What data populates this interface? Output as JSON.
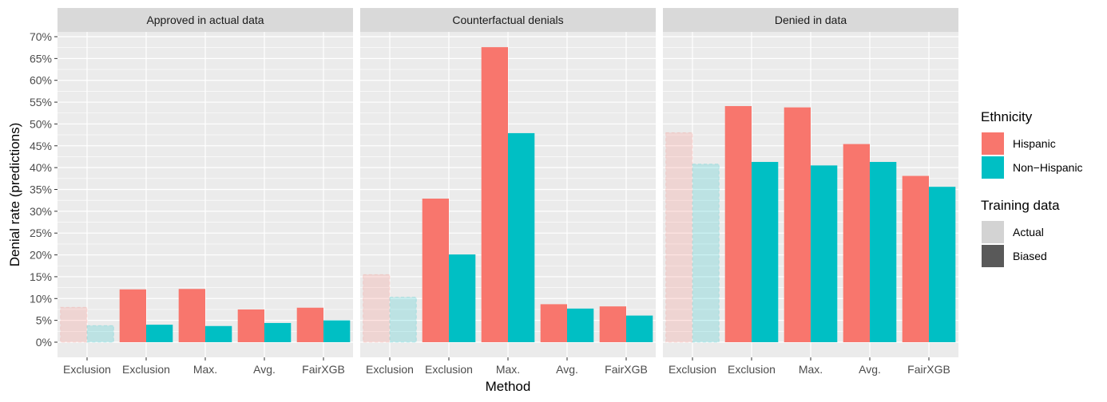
{
  "chart_data": {
    "type": "bar",
    "ylabel": "Denial rate (predictions)",
    "xlabel": "Method",
    "ylim": [
      0,
      0.7
    ],
    "y_ticks": [
      "0%",
      "5%",
      "10%",
      "15%",
      "20%",
      "25%",
      "30%",
      "35%",
      "40%",
      "45%",
      "50%",
      "55%",
      "60%",
      "65%",
      "70%"
    ],
    "y_tick_values": [
      0,
      0.05,
      0.1,
      0.15,
      0.2,
      0.25,
      0.3,
      0.35,
      0.4,
      0.45,
      0.5,
      0.55,
      0.6,
      0.65,
      0.7
    ],
    "categories": [
      "Exclusion",
      "Exclusion",
      "Max.",
      "Avg.",
      "FairXGB"
    ],
    "training_data": [
      "Actual",
      "Biased",
      "Biased",
      "Biased",
      "Biased"
    ],
    "grid": true,
    "legend_position": "right",
    "legends": [
      {
        "title": "Ethnicity",
        "entries": [
          {
            "label": "Hispanic",
            "color": "#F8766D"
          },
          {
            "label": "Non−Hispanic",
            "color": "#00BFC4"
          }
        ]
      },
      {
        "title": "Training data",
        "entries": [
          {
            "label": "Actual",
            "color": "#d3d3d3"
          },
          {
            "label": "Biased",
            "color": "#595959"
          }
        ]
      }
    ],
    "panels": [
      {
        "title": "Approved in actual data",
        "series": [
          {
            "name": "Hispanic",
            "values": [
              0.08,
              0.121,
              0.122,
              0.075,
              0.079
            ]
          },
          {
            "name": "Non−Hispanic",
            "values": [
              0.038,
              0.04,
              0.037,
              0.044,
              0.05
            ]
          }
        ]
      },
      {
        "title": "Counterfactual denials",
        "series": [
          {
            "name": "Hispanic",
            "values": [
              0.155,
              0.329,
              0.676,
              0.087,
              0.082
            ]
          },
          {
            "name": "Non−Hispanic",
            "values": [
              0.103,
              0.201,
              0.479,
              0.077,
              0.061
            ]
          }
        ]
      },
      {
        "title": "Denied in data",
        "series": [
          {
            "name": "Hispanic",
            "values": [
              0.48,
              0.541,
              0.538,
              0.454,
              0.381
            ]
          },
          {
            "name": "Non−Hispanic",
            "values": [
              0.408,
              0.413,
              0.405,
              0.413,
              0.356
            ]
          }
        ]
      }
    ]
  },
  "colors": {
    "hispanic": "#F8766D",
    "non_hispanic": "#00BFC4",
    "panel_bg": "#EBEBEB",
    "strip_bg": "#D9D9D9",
    "grid": "#FFFFFF"
  }
}
